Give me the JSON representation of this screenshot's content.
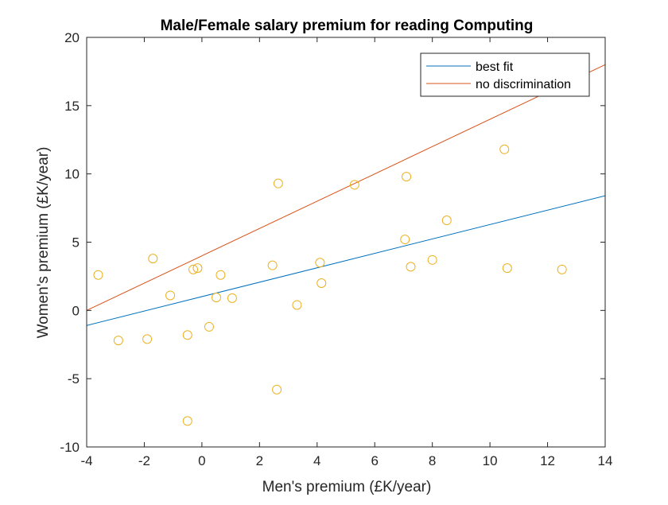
{
  "chart_data": {
    "type": "scatter",
    "title": "Male/Female salary premium for reading Computing",
    "xlabel": "Men's premium (£K/year)",
    "ylabel": "Women's premium (£K/year)",
    "xlim": [
      -4,
      14
    ],
    "ylim": [
      -10,
      20
    ],
    "xticks": [
      -4,
      -2,
      0,
      2,
      4,
      6,
      8,
      10,
      12,
      14
    ],
    "yticks": [
      -10,
      -5,
      0,
      5,
      10,
      15,
      20
    ],
    "grid": false,
    "legend_position": "top-right",
    "colors": {
      "points": "#EDB120",
      "best_fit": "#0072BD",
      "no_discrimination": "#D95319",
      "axes": "#262626"
    },
    "points": [
      {
        "x": -3.6,
        "y": 2.6
      },
      {
        "x": -2.9,
        "y": -2.2
      },
      {
        "x": -1.9,
        "y": -2.1
      },
      {
        "x": -1.7,
        "y": 3.8
      },
      {
        "x": -1.1,
        "y": 1.1
      },
      {
        "x": -0.5,
        "y": -1.8
      },
      {
        "x": -0.5,
        "y": -8.1
      },
      {
        "x": -0.3,
        "y": 3.0
      },
      {
        "x": -0.15,
        "y": 3.1
      },
      {
        "x": 0.25,
        "y": -1.2
      },
      {
        "x": 0.5,
        "y": 0.95
      },
      {
        "x": 0.65,
        "y": 2.6
      },
      {
        "x": 1.05,
        "y": 0.9
      },
      {
        "x": 2.45,
        "y": 3.3
      },
      {
        "x": 2.6,
        "y": -5.8
      },
      {
        "x": 2.65,
        "y": 9.3
      },
      {
        "x": 3.3,
        "y": 0.4
      },
      {
        "x": 4.1,
        "y": 3.5
      },
      {
        "x": 4.15,
        "y": 2.0
      },
      {
        "x": 5.3,
        "y": 9.2
      },
      {
        "x": 7.05,
        "y": 5.2
      },
      {
        "x": 7.1,
        "y": 9.8
      },
      {
        "x": 7.25,
        "y": 3.2
      },
      {
        "x": 8.0,
        "y": 3.7
      },
      {
        "x": 8.5,
        "y": 6.6
      },
      {
        "x": 10.5,
        "y": 11.8
      },
      {
        "x": 10.6,
        "y": 3.1
      },
      {
        "x": 12.5,
        "y": 3.0
      }
    ],
    "series": [
      {
        "name": "best fit",
        "x": [
          -4,
          14
        ],
        "y": [
          -1.1,
          8.4
        ]
      },
      {
        "name": "no discrimination",
        "x": [
          -4,
          14
        ],
        "y": [
          0,
          18
        ]
      }
    ]
  }
}
